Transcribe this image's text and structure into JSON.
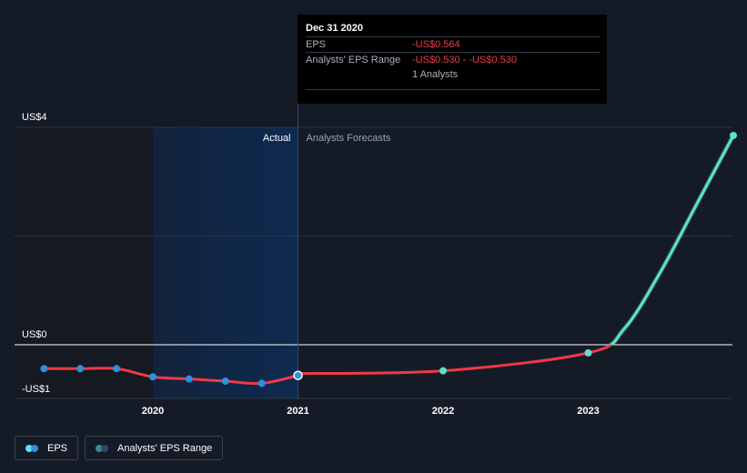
{
  "chart_data": {
    "type": "line",
    "y_ticks": [
      {
        "value": 4,
        "label": "US$4"
      },
      {
        "value": 0,
        "label": "US$0"
      },
      {
        "value": -1,
        "label": "-US$1"
      }
    ],
    "x_ticks": [
      {
        "value": 2020.0,
        "label": "2020"
      },
      {
        "value": 2021.0,
        "label": "2021"
      },
      {
        "value": 2022.0,
        "label": "2022"
      },
      {
        "value": 2023.0,
        "label": "2023"
      }
    ],
    "ylim": [
      -1,
      4
    ],
    "xlim": [
      2019.25,
      2024.0
    ],
    "actual_shade_start": 2020.0,
    "forecast_start": 2021.0,
    "region_labels": {
      "actual": "Actual",
      "forecast": "Analysts Forecasts"
    },
    "series": [
      {
        "name": "EPS",
        "role": "actual",
        "color": "#ee3a45",
        "point_color": "#2f8fe0",
        "x": [
          2019.25,
          2019.5,
          2019.75,
          2020.0,
          2020.25,
          2020.5,
          2020.75,
          2021.0
        ],
        "values": [
          -0.44,
          -0.44,
          -0.44,
          -0.59,
          -0.63,
          -0.67,
          -0.71,
          -0.564
        ]
      },
      {
        "name": "Analysts' EPS Range",
        "role": "forecast",
        "color": "#ee3a45",
        "positive_color": "#5ee0cc",
        "point_color": "#5ee0cc",
        "x": [
          2021.0,
          2022.0,
          2023.0,
          2023.25,
          2023.5,
          2023.75,
          2024.0
        ],
        "values": [
          -0.53,
          -0.48,
          -0.15,
          0.3,
          1.35,
          2.6,
          3.85
        ],
        "point_indices": [
          1,
          2,
          6
        ]
      }
    ],
    "highlight": {
      "x": 2021.0,
      "value": -0.564
    },
    "grid": true,
    "legend_position": "bottom-left"
  },
  "tooltip": {
    "date": "Dec 31 2020",
    "eps_label": "EPS",
    "eps_value": "-US$0.564",
    "range_label": "Analysts' EPS Range",
    "range_value": "-US$0.530 - -US$0.530",
    "analysts": "1 Analysts"
  },
  "legend": {
    "eps_label": "EPS",
    "range_label": "Analysts' EPS Range",
    "eps_colors": [
      "#5ee0ff",
      "#2f8fe0"
    ],
    "range_colors": [
      "#3a8c8c",
      "#2b4a6b"
    ]
  }
}
